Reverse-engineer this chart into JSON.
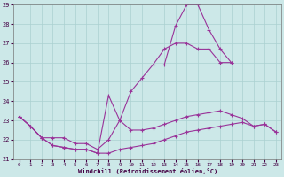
{
  "bg_color": "#cce8e8",
  "grid_color": "#aad0d0",
  "line_color": "#993399",
  "xlabel": "Windchill (Refroidissement éolien,°C)",
  "xlim": [
    -0.5,
    23.5
  ],
  "ylim": [
    21,
    29
  ],
  "x_ticks": [
    0,
    1,
    2,
    3,
    4,
    5,
    6,
    7,
    8,
    9,
    10,
    11,
    12,
    13,
    14,
    15,
    16,
    17,
    18,
    19,
    20,
    21,
    22,
    23
  ],
  "y_ticks": [
    21,
    22,
    23,
    24,
    25,
    26,
    27,
    28,
    29
  ],
  "series": [
    [
      23.2,
      22.7,
      22.1,
      21.7,
      21.6,
      21.5,
      21.5,
      21.3,
      21.3,
      21.5,
      21.6,
      21.7,
      21.8,
      22.0,
      22.2,
      22.4,
      22.5,
      22.6,
      22.7,
      22.8,
      22.9,
      22.7,
      22.8,
      22.4
    ],
    [
      23.2,
      22.7,
      22.1,
      21.7,
      21.6,
      21.5,
      21.5,
      21.3,
      24.3,
      23.0,
      22.5,
      22.5,
      22.6,
      22.8,
      23.0,
      23.2,
      23.3,
      23.4,
      23.5,
      23.3,
      23.1,
      22.7,
      22.8,
      22.4
    ],
    [
      23.2,
      22.7,
      22.1,
      22.1,
      22.1,
      21.8,
      21.8,
      21.5,
      22.0,
      23.0,
      24.5,
      25.2,
      25.9,
      26.7,
      27.0,
      27.0,
      26.7,
      26.7,
      26.0,
      26.0,
      null,
      null,
      null,
      null
    ],
    [
      null,
      null,
      null,
      null,
      null,
      null,
      null,
      null,
      null,
      null,
      null,
      null,
      null,
      25.9,
      27.9,
      29.0,
      29.0,
      27.7,
      26.7,
      26.0,
      null,
      null,
      null,
      null
    ]
  ]
}
